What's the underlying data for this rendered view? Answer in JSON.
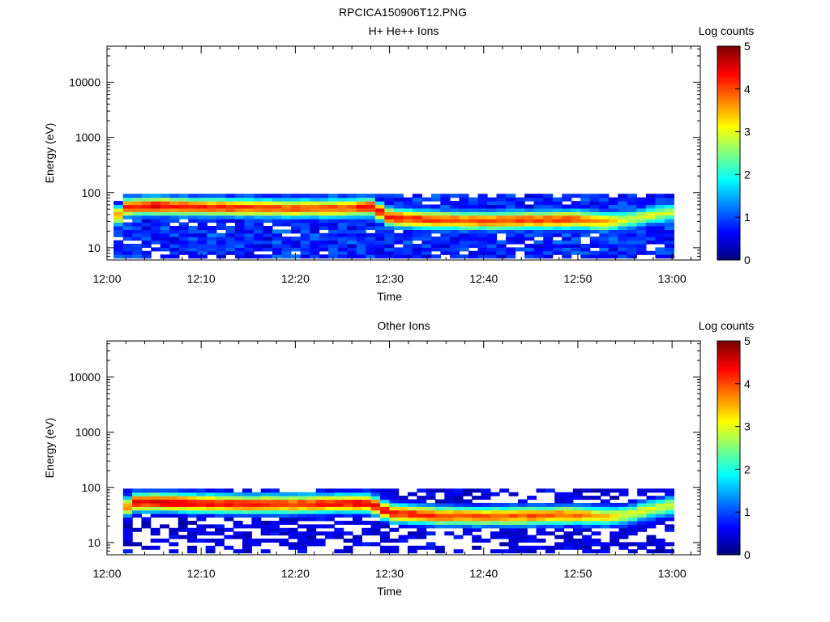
{
  "figure": {
    "title": "RPCICA150906T12.PNG"
  },
  "chart_data": [
    {
      "type": "heatmap",
      "title": "H+ He++ Ions",
      "xlabel": "Time",
      "ylabel": "Energy (eV)",
      "x_ticks": [
        "12:00",
        "12:10",
        "12:20",
        "12:30",
        "12:40",
        "12:50",
        "13:00"
      ],
      "x_range_minutes": [
        0,
        63
      ],
      "y_scale": "log",
      "y_ticks": [
        "10",
        "100",
        "1000",
        "10000"
      ],
      "y_range": [
        6,
        45000
      ],
      "colorbar": {
        "label": "Log counts",
        "ticks": [
          "0",
          "1",
          "2",
          "3",
          "4",
          "5"
        ],
        "range": [
          0,
          5
        ],
        "colormap": "rainbow"
      },
      "data_extent": {
        "time_minutes": [
          0.7,
          60.2
        ],
        "energy_eV": [
          6.5,
          95
        ]
      },
      "peak_profile": [
        {
          "time_minutes": 0.7,
          "peak_energy_eV": 30,
          "peak_log_counts": 3.2
        },
        {
          "time_minutes": 2.0,
          "peak_energy_eV": 55,
          "peak_log_counts": 4.3
        },
        {
          "time_minutes": 5.0,
          "peak_energy_eV": 58,
          "peak_log_counts": 4.5
        },
        {
          "time_minutes": 10.0,
          "peak_energy_eV": 55,
          "peak_log_counts": 4.2
        },
        {
          "time_minutes": 15.0,
          "peak_energy_eV": 54,
          "peak_log_counts": 4.1
        },
        {
          "time_minutes": 20.0,
          "peak_energy_eV": 52,
          "peak_log_counts": 4.0
        },
        {
          "time_minutes": 25.0,
          "peak_energy_eV": 53,
          "peak_log_counts": 4.0
        },
        {
          "time_minutes": 28.0,
          "peak_energy_eV": 56,
          "peak_log_counts": 4.4
        },
        {
          "time_minutes": 29.0,
          "peak_energy_eV": 45,
          "peak_log_counts": 4.3
        },
        {
          "time_minutes": 30.0,
          "peak_energy_eV": 36,
          "peak_log_counts": 4.3
        },
        {
          "time_minutes": 35.0,
          "peak_energy_eV": 32,
          "peak_log_counts": 4.1
        },
        {
          "time_minutes": 40.0,
          "peak_energy_eV": 31,
          "peak_log_counts": 4.0
        },
        {
          "time_minutes": 45.0,
          "peak_energy_eV": 32,
          "peak_log_counts": 4.1
        },
        {
          "time_minutes": 50.0,
          "peak_energy_eV": 33,
          "peak_log_counts": 4.0
        },
        {
          "time_minutes": 53.0,
          "peak_energy_eV": 30,
          "peak_log_counts": 3.6
        },
        {
          "time_minutes": 55.0,
          "peak_energy_eV": 32,
          "peak_log_counts": 3.0
        },
        {
          "time_minutes": 60.2,
          "peak_energy_eV": 45,
          "peak_log_counts": 2.9
        }
      ],
      "background_log_counts": 0.8,
      "empty_bin_fraction": 0.1
    },
    {
      "type": "heatmap",
      "title": "Other Ions",
      "xlabel": "Time",
      "ylabel": "Energy (eV)",
      "x_ticks": [
        "12:00",
        "12:10",
        "12:20",
        "12:30",
        "12:40",
        "12:50",
        "13:00"
      ],
      "x_range_minutes": [
        0,
        63
      ],
      "y_scale": "log",
      "y_ticks": [
        "10",
        "100",
        "1000",
        "10000"
      ],
      "y_range": [
        6,
        45000
      ],
      "colorbar": {
        "label": "Log counts",
        "ticks": [
          "0",
          "1",
          "2",
          "3",
          "4",
          "5"
        ],
        "range": [
          0,
          5
        ],
        "colormap": "rainbow"
      },
      "data_extent": {
        "time_minutes": [
          1.7,
          60.2
        ],
        "energy_eV": [
          6.5,
          95
        ]
      },
      "peak_profile": [
        {
          "time_minutes": 1.7,
          "peak_energy_eV": 40,
          "peak_log_counts": 3.4
        },
        {
          "time_minutes": 3.0,
          "peak_energy_eV": 55,
          "peak_log_counts": 4.4
        },
        {
          "time_minutes": 5.0,
          "peak_energy_eV": 55,
          "peak_log_counts": 4.6
        },
        {
          "time_minutes": 10.0,
          "peak_energy_eV": 52,
          "peak_log_counts": 4.4
        },
        {
          "time_minutes": 15.0,
          "peak_energy_eV": 50,
          "peak_log_counts": 4.3
        },
        {
          "time_minutes": 20.0,
          "peak_energy_eV": 50,
          "peak_log_counts": 4.2
        },
        {
          "time_minutes": 25.0,
          "peak_energy_eV": 52,
          "peak_log_counts": 4.3
        },
        {
          "time_minutes": 28.0,
          "peak_energy_eV": 52,
          "peak_log_counts": 4.5
        },
        {
          "time_minutes": 29.0,
          "peak_energy_eV": 42,
          "peak_log_counts": 4.4
        },
        {
          "time_minutes": 30.0,
          "peak_energy_eV": 35,
          "peak_log_counts": 4.3
        },
        {
          "time_minutes": 35.0,
          "peak_energy_eV": 31,
          "peak_log_counts": 4.1
        },
        {
          "time_minutes": 40.0,
          "peak_energy_eV": 30,
          "peak_log_counts": 4.0
        },
        {
          "time_minutes": 45.0,
          "peak_energy_eV": 31,
          "peak_log_counts": 4.0
        },
        {
          "time_minutes": 50.0,
          "peak_energy_eV": 32,
          "peak_log_counts": 3.9
        },
        {
          "time_minutes": 53.0,
          "peak_energy_eV": 30,
          "peak_log_counts": 3.4
        },
        {
          "time_minutes": 55.0,
          "peak_energy_eV": 32,
          "peak_log_counts": 3.0
        },
        {
          "time_minutes": 60.2,
          "peak_energy_eV": 48,
          "peak_log_counts": 3.0
        }
      ],
      "background_log_counts": 0.45,
      "empty_bin_fraction": 0.45
    }
  ]
}
